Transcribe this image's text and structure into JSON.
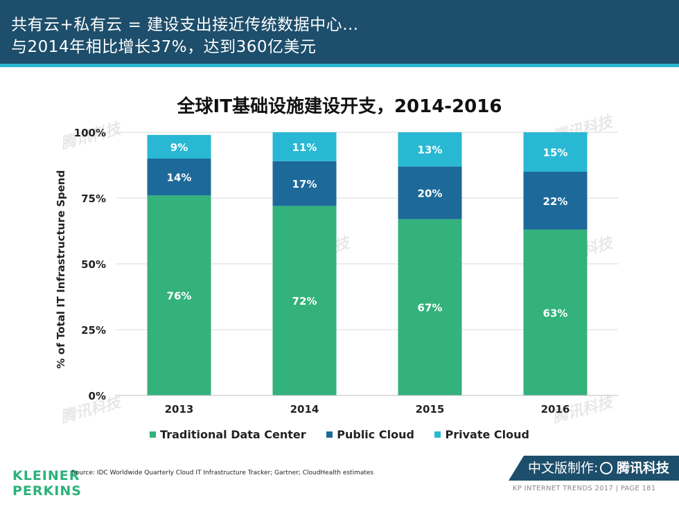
{
  "header": {
    "line1": "共有云+私有云 = 建设支出接近传统数据中心…",
    "line2": "与2014年相比增长37%，达到360亿美元"
  },
  "chart_data": {
    "type": "bar",
    "stacked": true,
    "title": "全球IT基础设施建设开支，2014-2016",
    "xlabel": "",
    "ylabel": "% of Total IT Infrastructure Spend",
    "ylim": [
      0,
      100
    ],
    "yticks": [
      "0%",
      "25%",
      "50%",
      "75%",
      "100%"
    ],
    "categories": [
      "2013",
      "2014",
      "2015",
      "2016"
    ],
    "series": [
      {
        "name": "Traditional Data Center",
        "color": "#33b27b",
        "values": [
          76,
          72,
          67,
          63
        ],
        "labels": [
          "76%",
          "72%",
          "67%",
          "63%"
        ]
      },
      {
        "name": "Public Cloud",
        "color": "#1d6a9a",
        "values": [
          14,
          17,
          20,
          22
        ],
        "labels": [
          "14%",
          "17%",
          "20%",
          "22%"
        ]
      },
      {
        "name": "Private Cloud",
        "color": "#29b8d4",
        "values": [
          9,
          11,
          13,
          15
        ],
        "labels": [
          "9%",
          "11%",
          "13%",
          "15%"
        ]
      }
    ],
    "legend_position": "bottom"
  },
  "watermark": "腾讯科技",
  "footer": {
    "logo_line1": "KLEINER",
    "logo_line2": "PERKINS",
    "source": "Source: IDC Worldwide Quarterly Cloud IT Infrastructure Tracker; Gartner; CloudHealth estimates",
    "badge_label": "中文版制作:",
    "badge_brand": "腾讯科技",
    "page_text": "KP INTERNET TRENDS 2017  |  PAGE 181"
  }
}
